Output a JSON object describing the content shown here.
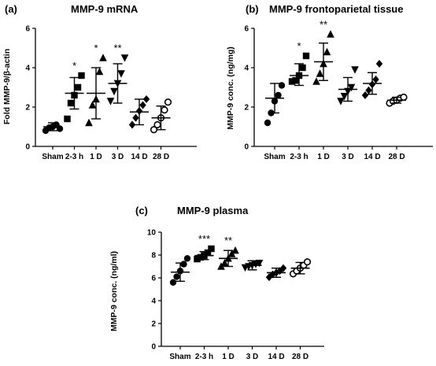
{
  "chart_data": [
    {
      "type": "scatter",
      "panel_label": "(a)",
      "title": "MMP-9 mRNA",
      "xlabel": "",
      "ylabel": "Fold MMP-9/β-actin",
      "ylim": [
        0,
        6
      ],
      "yticks": [
        0,
        2,
        4,
        6
      ],
      "categories": [
        "Sham",
        "2-3 h",
        "1 D",
        "3 D",
        "14 D",
        "28 D"
      ],
      "markers": [
        "circle",
        "square",
        "triangle",
        "triangle-down",
        "diamond",
        "circle-open"
      ],
      "significance": [
        "",
        "*",
        "*",
        "**",
        "",
        ""
      ],
      "mean": [
        1.0,
        2.7,
        2.7,
        3.2,
        1.75,
        1.45
      ],
      "sd_low": [
        0.8,
        1.9,
        1.4,
        2.2,
        1.1,
        0.85
      ],
      "sd_high": [
        1.2,
        3.5,
        4.0,
        4.2,
        2.4,
        2.05
      ],
      "points": [
        [
          0.8,
          0.95,
          1.0,
          1.1,
          0.9
        ],
        [
          1.4,
          2.2,
          2.6,
          3.0,
          3.6
        ],
        [
          1.2,
          2.1,
          2.4,
          3.8,
          4.5
        ],
        [
          2.3,
          2.8,
          3.2,
          3.7,
          4.5
        ],
        [
          1.1,
          1.45,
          1.8,
          2.1,
          2.4
        ],
        [
          0.85,
          1.1,
          1.45,
          1.85,
          2.25
        ]
      ]
    },
    {
      "type": "scatter",
      "panel_label": "(b)",
      "title": "MMP-9 frontoparietal tissue",
      "xlabel": "",
      "ylabel": "MMP-9 conc. (ng/mg)",
      "ylim": [
        0,
        6
      ],
      "yticks": [
        0,
        2,
        4,
        6
      ],
      "categories": [
        "Sham",
        "2-3 h",
        "1 D",
        "3 D",
        "14 D",
        "28 D"
      ],
      "markers": [
        "circle",
        "square",
        "triangle",
        "triangle-down",
        "diamond",
        "circle-open"
      ],
      "significance": [
        "",
        "*",
        "**",
        "",
        "",
        ""
      ],
      "mean": [
        2.45,
        3.6,
        4.3,
        2.9,
        3.2,
        2.35
      ],
      "sd_low": [
        1.7,
        3.1,
        3.35,
        2.3,
        2.65,
        2.2
      ],
      "sd_high": [
        3.2,
        4.2,
        5.25,
        3.5,
        3.75,
        2.5
      ],
      "points": [
        [
          1.2,
          1.7,
          2.3,
          2.6,
          3.1
        ],
        [
          3.3,
          3.35,
          3.6,
          4.0,
          4.6
        ],
        [
          3.3,
          3.7,
          4.2,
          4.8,
          5.7
        ],
        [
          2.3,
          2.55,
          2.8,
          3.0,
          3.9
        ],
        [
          2.6,
          2.85,
          3.15,
          3.4,
          4.2
        ],
        [
          2.2,
          2.3,
          2.35,
          2.45,
          2.5
        ]
      ]
    },
    {
      "type": "scatter",
      "panel_label": "(c)",
      "title": "MMP-9 plasma",
      "xlabel": "",
      "ylabel": "MMP-9 conc. (ng/ml)",
      "ylim": [
        0,
        10
      ],
      "yticks": [
        0,
        2,
        4,
        6,
        8,
        10
      ],
      "categories": [
        "Sham",
        "2-3 h",
        "1 D",
        "3 D",
        "14 D",
        "28 D"
      ],
      "markers": [
        "circle",
        "square",
        "triangle",
        "triangle-down",
        "diamond",
        "circle-open"
      ],
      "significance": [
        "",
        "***",
        "**",
        "",
        "",
        ""
      ],
      "mean": [
        6.5,
        7.95,
        7.7,
        7.1,
        6.45,
        6.85
      ],
      "sd_low": [
        5.7,
        7.6,
        7.0,
        6.7,
        6.05,
        6.35
      ],
      "sd_high": [
        7.3,
        8.3,
        8.4,
        7.5,
        6.85,
        7.35
      ],
      "points": [
        [
          5.6,
          6.1,
          6.6,
          7.2,
          7.7
        ],
        [
          7.65,
          7.8,
          7.95,
          8.2,
          8.55
        ],
        [
          7.0,
          7.3,
          7.7,
          8.1,
          8.4
        ],
        [
          6.9,
          7.0,
          7.1,
          7.2,
          7.3
        ],
        [
          6.05,
          6.3,
          6.45,
          6.6,
          6.85
        ],
        [
          6.35,
          6.6,
          6.85,
          7.1,
          7.4
        ]
      ]
    }
  ]
}
